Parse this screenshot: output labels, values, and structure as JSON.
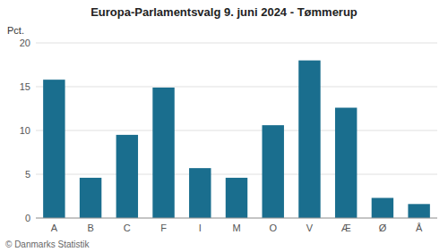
{
  "chart_data": {
    "type": "bar",
    "title": "Europa-Parlamentsvalg 9. juni 2024 - Tømmerup",
    "ylabel": "Pct.",
    "annotations": [
      "© Danmarks Statistik"
    ],
    "categories": [
      "A",
      "B",
      "C",
      "F",
      "I",
      "M",
      "O",
      "V",
      "Æ",
      "Ø",
      "Å"
    ],
    "values": [
      15.8,
      4.6,
      9.5,
      14.9,
      5.7,
      4.6,
      10.6,
      18.0,
      12.6,
      2.3,
      1.6
    ],
    "color": "#1a6e8e",
    "ylim": [
      0,
      20
    ],
    "yticks": [
      0,
      5,
      10,
      15,
      20
    ],
    "grid": true
  }
}
